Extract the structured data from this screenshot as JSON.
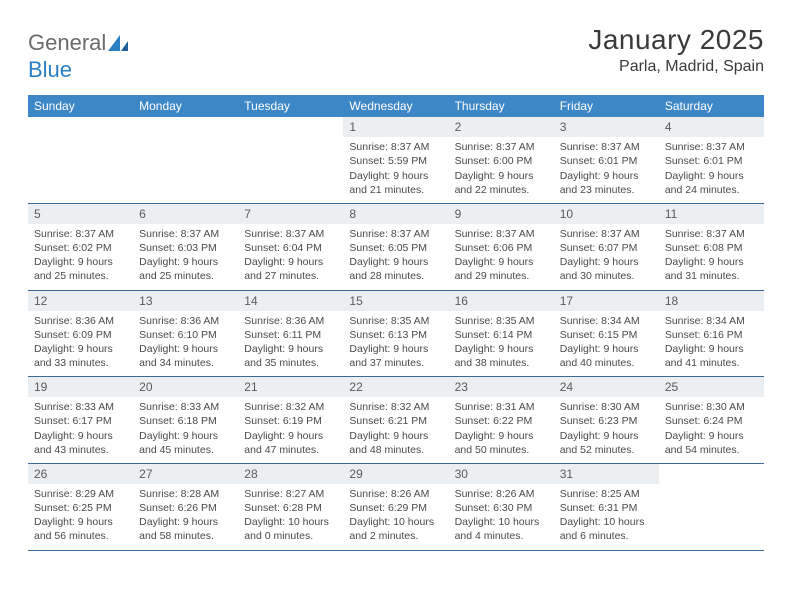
{
  "brand": {
    "part1": "General",
    "part2": "Blue"
  },
  "title": "January 2025",
  "location": "Parla, Madrid, Spain",
  "colors": {
    "header_bg": "#3d87c7",
    "header_text": "#ffffff",
    "daynum_bg": "#eceff1",
    "rule": "#3a6a9a",
    "body_text": "#4a4a4a",
    "logo_gray": "#6b6b6b",
    "logo_blue": "#2b7fc3"
  },
  "typography": {
    "title_fontsize": 28,
    "location_fontsize": 16,
    "dayhead_fontsize": 12,
    "daynum_fontsize": 12,
    "detail_fontsize": 10.5
  },
  "day_headers": [
    "Sunday",
    "Monday",
    "Tuesday",
    "Wednesday",
    "Thursday",
    "Friday",
    "Saturday"
  ],
  "weeks": [
    [
      {
        "n": "",
        "sr": "",
        "ss": "",
        "dl": ""
      },
      {
        "n": "",
        "sr": "",
        "ss": "",
        "dl": ""
      },
      {
        "n": "",
        "sr": "",
        "ss": "",
        "dl": ""
      },
      {
        "n": "1",
        "sr": "8:37 AM",
        "ss": "5:59 PM",
        "dl": "9 hours and 21 minutes."
      },
      {
        "n": "2",
        "sr": "8:37 AM",
        "ss": "6:00 PM",
        "dl": "9 hours and 22 minutes."
      },
      {
        "n": "3",
        "sr": "8:37 AM",
        "ss": "6:01 PM",
        "dl": "9 hours and 23 minutes."
      },
      {
        "n": "4",
        "sr": "8:37 AM",
        "ss": "6:01 PM",
        "dl": "9 hours and 24 minutes."
      }
    ],
    [
      {
        "n": "5",
        "sr": "8:37 AM",
        "ss": "6:02 PM",
        "dl": "9 hours and 25 minutes."
      },
      {
        "n": "6",
        "sr": "8:37 AM",
        "ss": "6:03 PM",
        "dl": "9 hours and 25 minutes."
      },
      {
        "n": "7",
        "sr": "8:37 AM",
        "ss": "6:04 PM",
        "dl": "9 hours and 27 minutes."
      },
      {
        "n": "8",
        "sr": "8:37 AM",
        "ss": "6:05 PM",
        "dl": "9 hours and 28 minutes."
      },
      {
        "n": "9",
        "sr": "8:37 AM",
        "ss": "6:06 PM",
        "dl": "9 hours and 29 minutes."
      },
      {
        "n": "10",
        "sr": "8:37 AM",
        "ss": "6:07 PM",
        "dl": "9 hours and 30 minutes."
      },
      {
        "n": "11",
        "sr": "8:37 AM",
        "ss": "6:08 PM",
        "dl": "9 hours and 31 minutes."
      }
    ],
    [
      {
        "n": "12",
        "sr": "8:36 AM",
        "ss": "6:09 PM",
        "dl": "9 hours and 33 minutes."
      },
      {
        "n": "13",
        "sr": "8:36 AM",
        "ss": "6:10 PM",
        "dl": "9 hours and 34 minutes."
      },
      {
        "n": "14",
        "sr": "8:36 AM",
        "ss": "6:11 PM",
        "dl": "9 hours and 35 minutes."
      },
      {
        "n": "15",
        "sr": "8:35 AM",
        "ss": "6:13 PM",
        "dl": "9 hours and 37 minutes."
      },
      {
        "n": "16",
        "sr": "8:35 AM",
        "ss": "6:14 PM",
        "dl": "9 hours and 38 minutes."
      },
      {
        "n": "17",
        "sr": "8:34 AM",
        "ss": "6:15 PM",
        "dl": "9 hours and 40 minutes."
      },
      {
        "n": "18",
        "sr": "8:34 AM",
        "ss": "6:16 PM",
        "dl": "9 hours and 41 minutes."
      }
    ],
    [
      {
        "n": "19",
        "sr": "8:33 AM",
        "ss": "6:17 PM",
        "dl": "9 hours and 43 minutes."
      },
      {
        "n": "20",
        "sr": "8:33 AM",
        "ss": "6:18 PM",
        "dl": "9 hours and 45 minutes."
      },
      {
        "n": "21",
        "sr": "8:32 AM",
        "ss": "6:19 PM",
        "dl": "9 hours and 47 minutes."
      },
      {
        "n": "22",
        "sr": "8:32 AM",
        "ss": "6:21 PM",
        "dl": "9 hours and 48 minutes."
      },
      {
        "n": "23",
        "sr": "8:31 AM",
        "ss": "6:22 PM",
        "dl": "9 hours and 50 minutes."
      },
      {
        "n": "24",
        "sr": "8:30 AM",
        "ss": "6:23 PM",
        "dl": "9 hours and 52 minutes."
      },
      {
        "n": "25",
        "sr": "8:30 AM",
        "ss": "6:24 PM",
        "dl": "9 hours and 54 minutes."
      }
    ],
    [
      {
        "n": "26",
        "sr": "8:29 AM",
        "ss": "6:25 PM",
        "dl": "9 hours and 56 minutes."
      },
      {
        "n": "27",
        "sr": "8:28 AM",
        "ss": "6:26 PM",
        "dl": "9 hours and 58 minutes."
      },
      {
        "n": "28",
        "sr": "8:27 AM",
        "ss": "6:28 PM",
        "dl": "10 hours and 0 minutes."
      },
      {
        "n": "29",
        "sr": "8:26 AM",
        "ss": "6:29 PM",
        "dl": "10 hours and 2 minutes."
      },
      {
        "n": "30",
        "sr": "8:26 AM",
        "ss": "6:30 PM",
        "dl": "10 hours and 4 minutes."
      },
      {
        "n": "31",
        "sr": "8:25 AM",
        "ss": "6:31 PM",
        "dl": "10 hours and 6 minutes."
      },
      {
        "n": "",
        "sr": "",
        "ss": "",
        "dl": ""
      }
    ]
  ],
  "labels": {
    "sunrise": "Sunrise:",
    "sunset": "Sunset:",
    "daylight": "Daylight:"
  }
}
